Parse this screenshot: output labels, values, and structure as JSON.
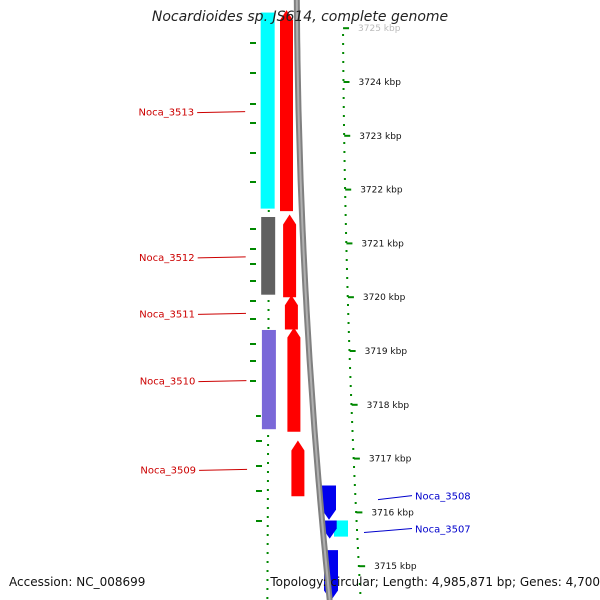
{
  "title": "Nocardioides sp. JS614, complete genome",
  "accession": "Accession: NC_008699",
  "summary": "Topology: circular; Length: 4,985,871 bp; Genes: 4,700",
  "colors": {
    "forward": "#ff0000",
    "reverse": "#0000ee",
    "label_forward": "#cc0000",
    "label_reverse": "#0000cc",
    "axis": "#808080",
    "ticks": "#008800"
  },
  "ruler": [
    {
      "label": "3725 kbp",
      "value": 3725
    },
    {
      "label": "3724 kbp",
      "value": 3724
    },
    {
      "label": "3723 kbp",
      "value": 3723
    },
    {
      "label": "3722 kbp",
      "value": 3722
    },
    {
      "label": "3721 kbp",
      "value": 3721
    },
    {
      "label": "3720 kbp",
      "value": 3720
    },
    {
      "label": "3719 kbp",
      "value": 3719
    },
    {
      "label": "3718 kbp",
      "value": 3718
    },
    {
      "label": "3717 kbp",
      "value": 3717
    },
    {
      "label": "3716 kbp",
      "value": 3716
    },
    {
      "label": "3715 kbp",
      "value": 3715
    }
  ],
  "genes": [
    {
      "id": "Noca_3513",
      "strand": "+",
      "start_kbp": 3721.6,
      "end_kbp": 3725.3,
      "category_color": "#00ffff"
    },
    {
      "id": "Noca_3512",
      "strand": "+",
      "start_kbp": 3720.0,
      "end_kbp": 3721.5,
      "category_color": "#606060"
    },
    {
      "id": "Noca_3511",
      "strand": "+",
      "start_kbp": 3719.4,
      "end_kbp": 3720.0,
      "category_color": ""
    },
    {
      "id": "Noca_3510",
      "strand": "+",
      "start_kbp": 3717.5,
      "end_kbp": 3719.4,
      "category_color": "#7a68d8"
    },
    {
      "id": "Noca_3509",
      "strand": "+",
      "start_kbp": 3716.3,
      "end_kbp": 3717.3,
      "category_color": ""
    },
    {
      "id": "Noca_3508",
      "strand": "-",
      "start_kbp": 3715.9,
      "end_kbp": 3716.5,
      "category_color": ""
    },
    {
      "id": "Noca_3507",
      "strand": "-",
      "start_kbp": 3715.55,
      "end_kbp": 3715.85,
      "category_color": "#00ffff"
    },
    {
      "id": "",
      "strand": "-",
      "start_kbp": 3714.4,
      "end_kbp": 3715.3,
      "category_color": ""
    }
  ],
  "labels": [
    {
      "text": "Noca_3513",
      "gene": "Noca_3513"
    },
    {
      "text": "Noca_3512",
      "gene": "Noca_3512"
    },
    {
      "text": "Noca_3511",
      "gene": "Noca_3511"
    },
    {
      "text": "Noca_3510",
      "gene": "Noca_3510"
    },
    {
      "text": "Noca_3509",
      "gene": "Noca_3509"
    },
    {
      "text": "Noca_3508",
      "gene": "Noca_3508"
    },
    {
      "text": "Noca_3507",
      "gene": "Noca_3507"
    }
  ]
}
